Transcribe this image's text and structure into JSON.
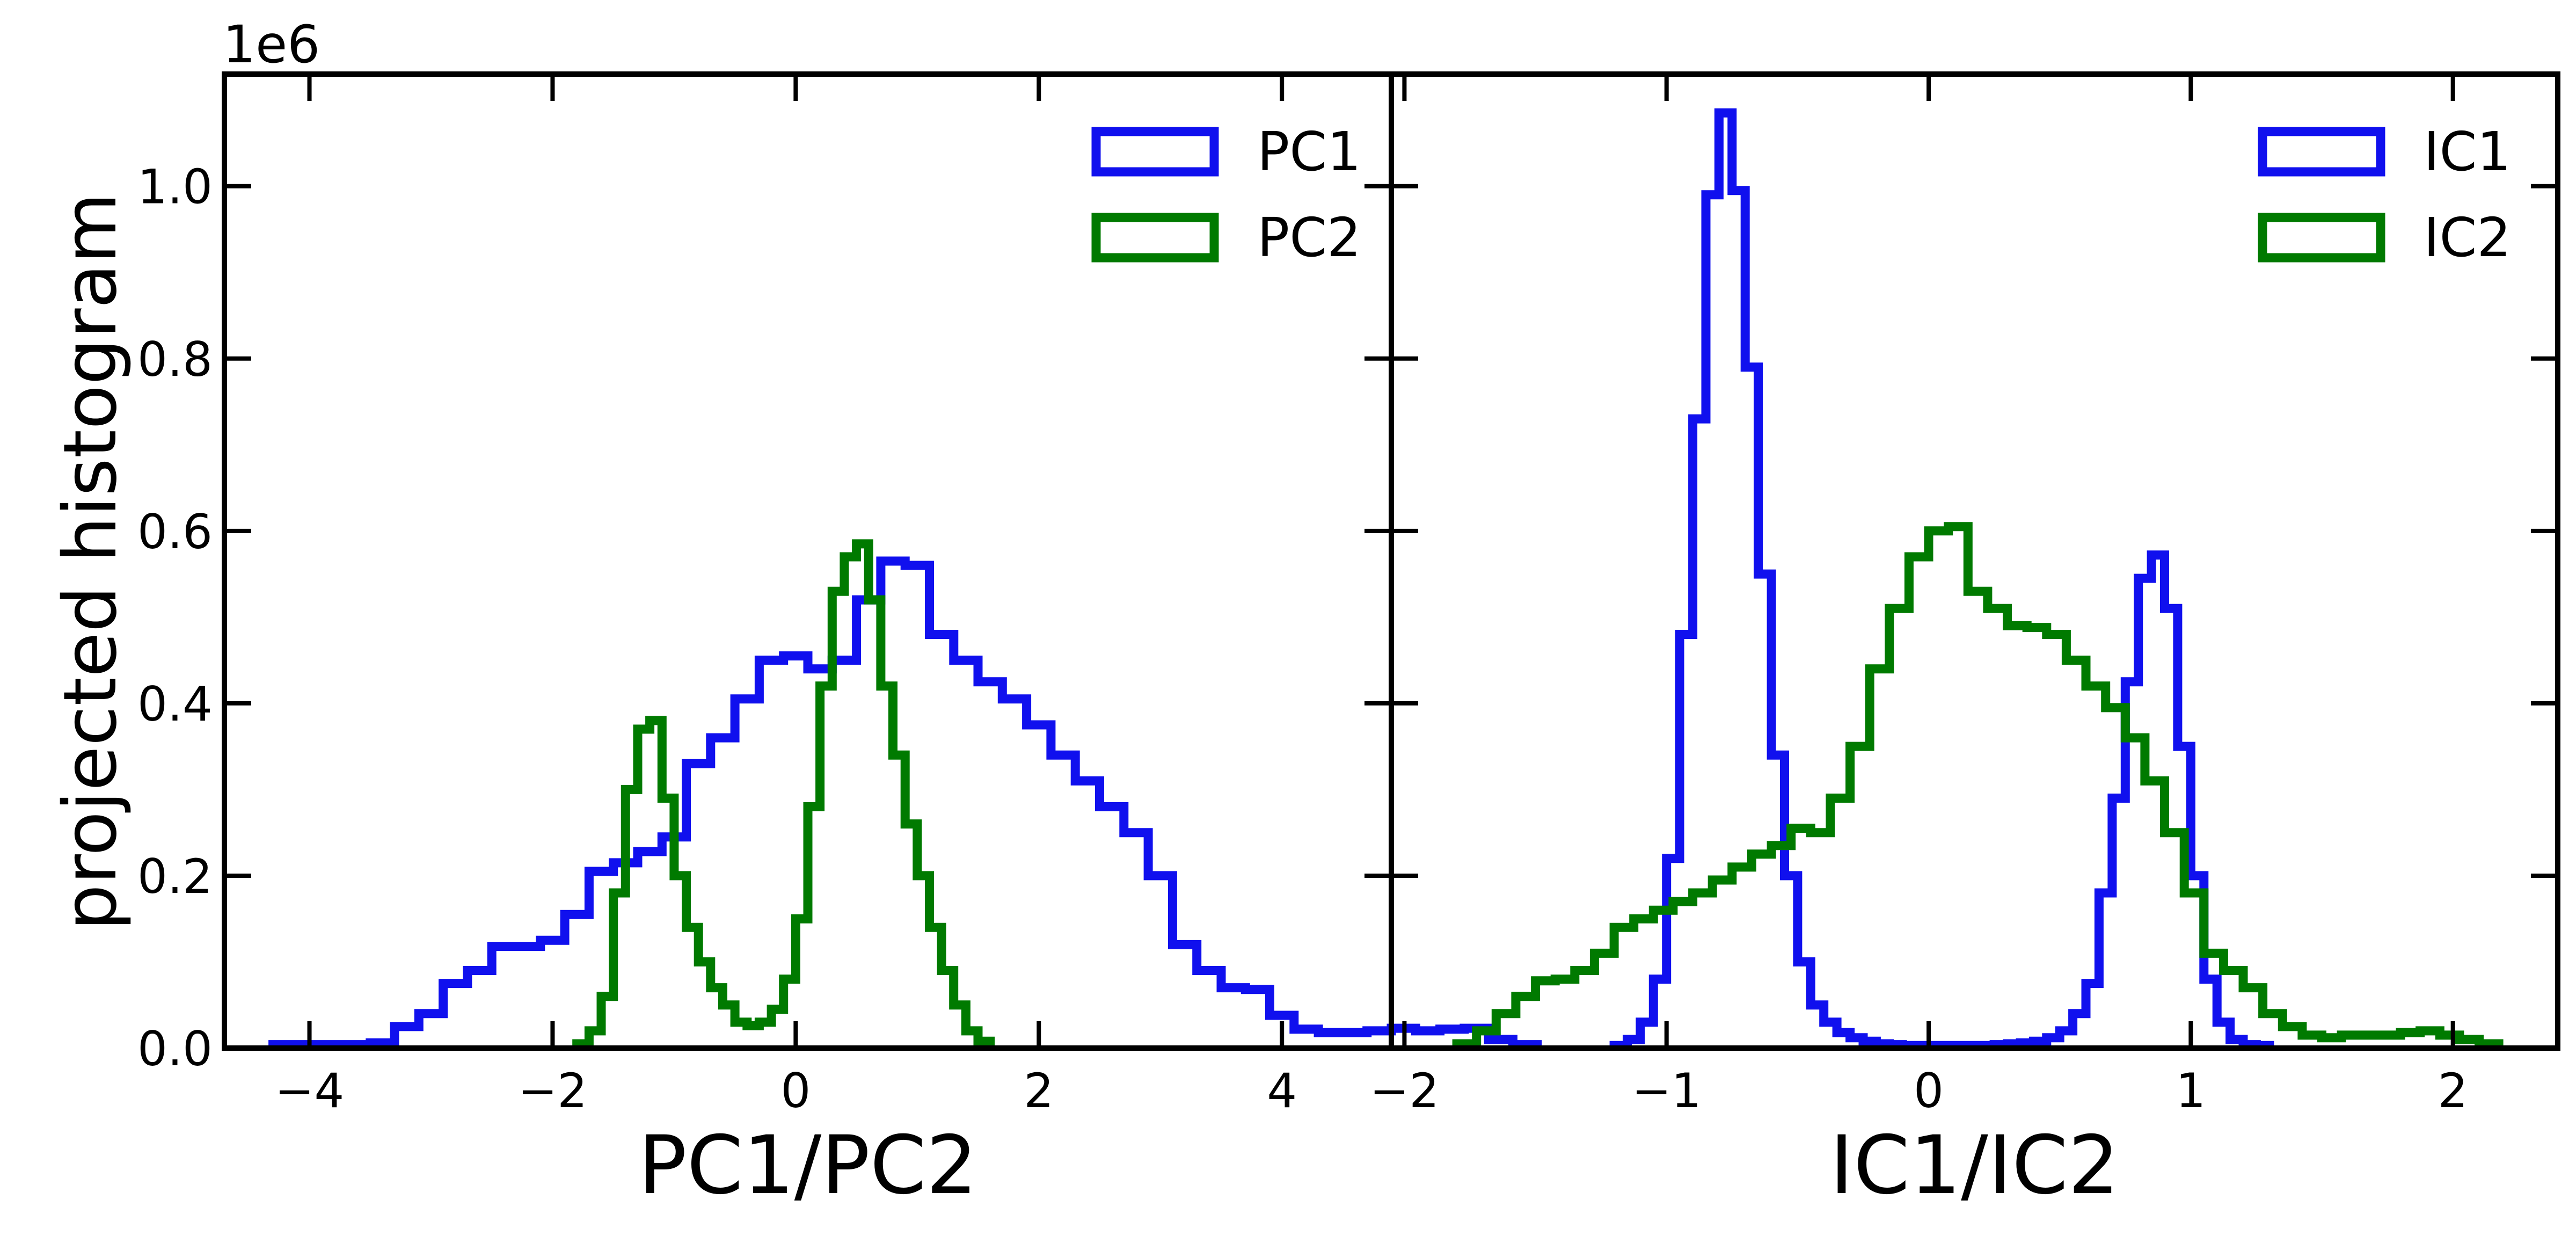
{
  "figure": {
    "ylabel": "projected histogram",
    "y_offset_text": "1e6"
  },
  "chart_data": [
    {
      "type": "histogram",
      "xlabel": "PC1/PC2",
      "xlim": [
        -4.7,
        4.9
      ],
      "ylim": [
        0,
        1.13
      ],
      "y_scale_factor": 1000000,
      "x_ticks": [
        -4,
        -2,
        0,
        2,
        4
      ],
      "x_tick_labels": [
        "−4",
        "−2",
        "0",
        "2",
        "4"
      ],
      "y_ticks": [
        0,
        0.2,
        0.4,
        0.6,
        0.8,
        1.0
      ],
      "y_tick_labels": [
        "0.0",
        "0.2",
        "0.4",
        "0.6",
        "0.8",
        "1.0"
      ],
      "grid": false,
      "legend_position": "top-right",
      "series": [
        {
          "name": "PC1",
          "color": "#1010ee",
          "bin_start": -4.3,
          "bin_width": 0.2,
          "counts": [
            0.004,
            0.004,
            0.004,
            0.004,
            0.006,
            0.025,
            0.04,
            0.075,
            0.09,
            0.118,
            0.118,
            0.125,
            0.155,
            0.205,
            0.215,
            0.228,
            0.245,
            0.33,
            0.36,
            0.405,
            0.45,
            0.455,
            0.44,
            0.45,
            0.52,
            0.565,
            0.56,
            0.48,
            0.45,
            0.425,
            0.405,
            0.375,
            0.34,
            0.31,
            0.28,
            0.25,
            0.2,
            0.12,
            0.09,
            0.07,
            0.068,
            0.038,
            0.022,
            0.018,
            0.018,
            0.02,
            0.023,
            0.02,
            0.022,
            0.023,
            0.01,
            0.004
          ]
        },
        {
          "name": "PC2",
          "color": "#007a00",
          "bin_start": -1.8,
          "bin_width": 0.1,
          "counts": [
            0.005,
            0.02,
            0.06,
            0.18,
            0.3,
            0.37,
            0.38,
            0.29,
            0.2,
            0.14,
            0.1,
            0.07,
            0.05,
            0.03,
            0.026,
            0.03,
            0.045,
            0.08,
            0.15,
            0.28,
            0.42,
            0.53,
            0.57,
            0.585,
            0.52,
            0.42,
            0.34,
            0.26,
            0.2,
            0.14,
            0.09,
            0.05,
            0.02,
            0.008
          ]
        }
      ]
    },
    {
      "type": "histogram",
      "xlabel": "IC1/IC2",
      "xlim": [
        -2.05,
        2.4
      ],
      "ylim": [
        0,
        1.13
      ],
      "y_scale_factor": 1000000,
      "x_ticks": [
        -2,
        -1,
        0,
        1,
        2
      ],
      "x_tick_labels": [
        "−2",
        "−1",
        "0",
        "1",
        "2"
      ],
      "y_ticks": [
        0,
        0.2,
        0.4,
        0.6,
        0.8,
        1.0
      ],
      "y_tick_labels": [
        "0.0",
        "0.2",
        "0.4",
        "0.6",
        "0.8",
        "1.0"
      ],
      "grid": false,
      "legend_position": "top-right",
      "series": [
        {
          "name": "IC1",
          "color": "#1010ee",
          "bin_start": -1.2,
          "bin_width": 0.05,
          "counts": [
            0.003,
            0.01,
            0.03,
            0.08,
            0.22,
            0.48,
            0.73,
            0.99,
            1.085,
            0.995,
            0.79,
            0.55,
            0.34,
            0.2,
            0.1,
            0.05,
            0.03,
            0.018,
            0.012,
            0.008,
            0.005,
            0.004,
            0.003,
            0.003,
            0.003,
            0.003,
            0.003,
            0.003,
            0.003,
            0.004,
            0.005,
            0.006,
            0.008,
            0.012,
            0.02,
            0.04,
            0.075,
            0.18,
            0.29,
            0.425,
            0.545,
            0.572,
            0.51,
            0.35,
            0.2,
            0.08,
            0.03,
            0.01,
            0.004,
            0.003
          ]
        },
        {
          "name": "IC2",
          "color": "#007a00",
          "bin_start": -1.8,
          "bin_width": 0.075,
          "counts": [
            0.005,
            0.02,
            0.04,
            0.06,
            0.078,
            0.08,
            0.09,
            0.11,
            0.14,
            0.15,
            0.16,
            0.17,
            0.18,
            0.195,
            0.21,
            0.225,
            0.235,
            0.255,
            0.25,
            0.29,
            0.35,
            0.44,
            0.51,
            0.57,
            0.6,
            0.605,
            0.53,
            0.51,
            0.49,
            0.488,
            0.48,
            0.45,
            0.42,
            0.395,
            0.36,
            0.31,
            0.25,
            0.18,
            0.11,
            0.09,
            0.07,
            0.04,
            0.025,
            0.015,
            0.012,
            0.015,
            0.015,
            0.015,
            0.018,
            0.02,
            0.015,
            0.01,
            0.005
          ]
        }
      ]
    }
  ]
}
